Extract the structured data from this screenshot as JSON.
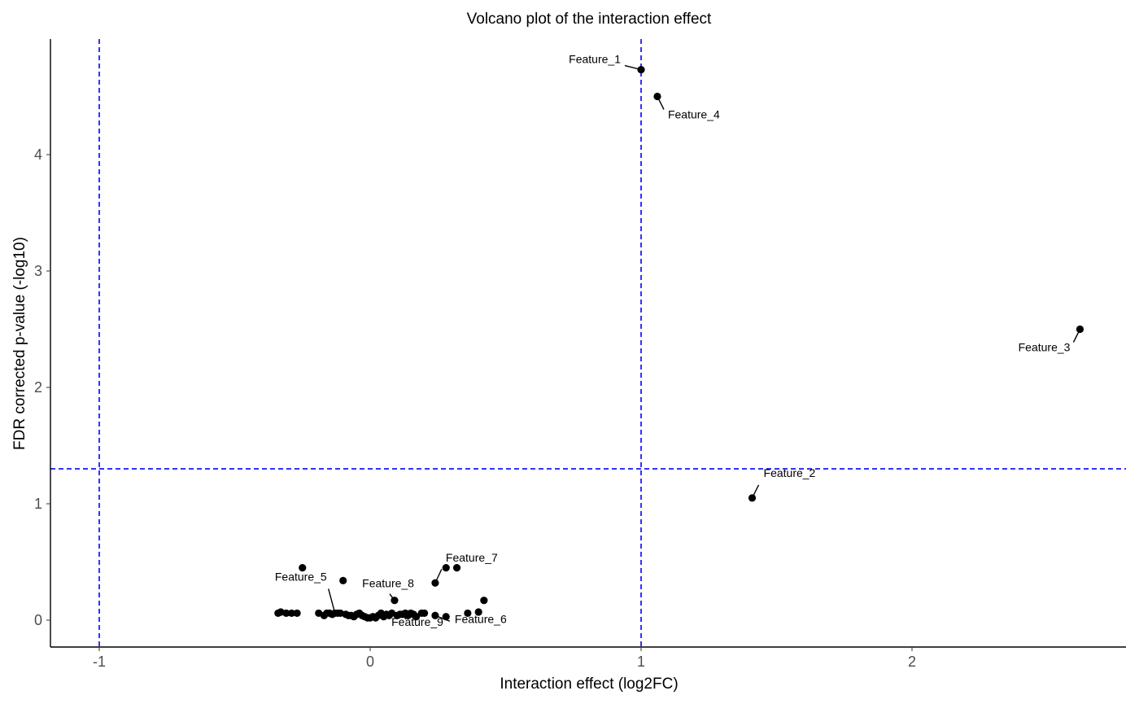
{
  "chart_data": {
    "type": "scatter",
    "title": "Volcano plot of the interaction effect",
    "xlabel": "Interaction effect (log2FC)",
    "ylabel": "FDR corrected p-value (-log10)",
    "xlim": [
      -1.2,
      2.8
    ],
    "ylim": [
      -0.22,
      4.97
    ],
    "x_ticks": [
      -1,
      0,
      1,
      2
    ],
    "y_ticks": [
      0,
      1,
      2,
      3,
      4
    ],
    "grid": false,
    "point_color": "#000000",
    "threshold_color": "#0000ff",
    "threshold_lines": {
      "vertical": [
        -1,
        1
      ],
      "horizontal": [
        1.3
      ]
    },
    "labeled_points": [
      {
        "label": "Feature_1",
        "x": 1.0,
        "y": 4.73
      },
      {
        "label": "Feature_2",
        "x": 1.41,
        "y": 1.05
      },
      {
        "label": "Feature_3",
        "x": 2.62,
        "y": 2.5
      },
      {
        "label": "Feature_4",
        "x": 1.06,
        "y": 4.5
      },
      {
        "label": "Feature_5",
        "x": -0.13,
        "y": 0.06
      },
      {
        "label": "Feature_6",
        "x": 0.24,
        "y": 0.04
      },
      {
        "label": "Feature_7",
        "x": 0.24,
        "y": 0.32
      },
      {
        "label": "Feature_8",
        "x": 0.09,
        "y": 0.17
      },
      {
        "label": "Feature_9",
        "x": 0.12,
        "y": 0.05
      }
    ],
    "other_points": [
      {
        "x": -0.34,
        "y": 0.06
      },
      {
        "x": -0.33,
        "y": 0.07
      },
      {
        "x": -0.31,
        "y": 0.06
      },
      {
        "x": -0.29,
        "y": 0.06
      },
      {
        "x": -0.27,
        "y": 0.06
      },
      {
        "x": -0.25,
        "y": 0.45
      },
      {
        "x": -0.19,
        "y": 0.06
      },
      {
        "x": -0.17,
        "y": 0.04
      },
      {
        "x": -0.16,
        "y": 0.06
      },
      {
        "x": -0.15,
        "y": 0.06
      },
      {
        "x": -0.14,
        "y": 0.05
      },
      {
        "x": -0.12,
        "y": 0.06
      },
      {
        "x": -0.11,
        "y": 0.06
      },
      {
        "x": -0.1,
        "y": 0.34
      },
      {
        "x": -0.09,
        "y": 0.05
      },
      {
        "x": -0.08,
        "y": 0.04
      },
      {
        "x": -0.07,
        "y": 0.04
      },
      {
        "x": -0.06,
        "y": 0.03
      },
      {
        "x": -0.05,
        "y": 0.05
      },
      {
        "x": -0.04,
        "y": 0.06
      },
      {
        "x": -0.03,
        "y": 0.04
      },
      {
        "x": -0.02,
        "y": 0.03
      },
      {
        "x": -0.01,
        "y": 0.02
      },
      {
        "x": 0.0,
        "y": 0.02
      },
      {
        "x": 0.01,
        "y": 0.03
      },
      {
        "x": 0.02,
        "y": 0.02
      },
      {
        "x": 0.03,
        "y": 0.04
      },
      {
        "x": 0.04,
        "y": 0.06
      },
      {
        "x": 0.05,
        "y": 0.03
      },
      {
        "x": 0.06,
        "y": 0.05
      },
      {
        "x": 0.07,
        "y": 0.04
      },
      {
        "x": 0.08,
        "y": 0.06
      },
      {
        "x": 0.1,
        "y": 0.04
      },
      {
        "x": 0.11,
        "y": 0.05
      },
      {
        "x": 0.13,
        "y": 0.06
      },
      {
        "x": 0.14,
        "y": 0.04
      },
      {
        "x": 0.15,
        "y": 0.06
      },
      {
        "x": 0.16,
        "y": 0.05
      },
      {
        "x": 0.17,
        "y": 0.03
      },
      {
        "x": 0.19,
        "y": 0.06
      },
      {
        "x": 0.2,
        "y": 0.06
      },
      {
        "x": 0.28,
        "y": 0.45
      },
      {
        "x": 0.28,
        "y": 0.03
      },
      {
        "x": 0.32,
        "y": 0.45
      },
      {
        "x": 0.36,
        "y": 0.06
      },
      {
        "x": 0.4,
        "y": 0.07
      },
      {
        "x": 0.42,
        "y": 0.17
      }
    ]
  }
}
